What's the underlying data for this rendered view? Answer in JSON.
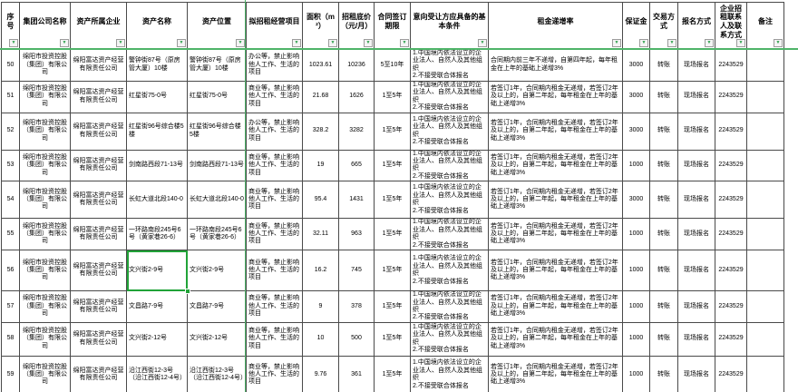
{
  "icons": {
    "filter_arrow": "▼"
  },
  "colors": {
    "freeze_line": "#4fb469",
    "selection_border": "#21a338",
    "grid_line": "#4a4a4a",
    "filter_arrow": "#2fa04d"
  },
  "selection": {
    "row_seq": "56",
    "column": "asset_name"
  },
  "table": {
    "columns": [
      {
        "key": "seq",
        "label": "序号"
      },
      {
        "key": "group",
        "label": "集团公司名称"
      },
      {
        "key": "owner",
        "label": "资产所属企业"
      },
      {
        "key": "asset_name",
        "label": "资产名称"
      },
      {
        "key": "location",
        "label": "资产位置"
      },
      {
        "key": "project",
        "label": "拟招租经营项目"
      },
      {
        "key": "area",
        "label": "面积（m²）"
      },
      {
        "key": "price",
        "label": "招租底价（元/月）"
      },
      {
        "key": "term",
        "label": "合同签订期限"
      },
      {
        "key": "conditions",
        "label": "意向受让方应具备的基本条件"
      },
      {
        "key": "increase",
        "label": "租金递增率"
      },
      {
        "key": "deposit",
        "label": "保证金"
      },
      {
        "key": "trade",
        "label": "交易方式"
      },
      {
        "key": "signup",
        "label": "报名方式"
      },
      {
        "key": "contact",
        "label": "企业招租联系人及联系方式"
      },
      {
        "key": "note",
        "label": "备注"
      }
    ],
    "rows": [
      {
        "seq": "50",
        "group": "绵阳市投资控股（集团）有限公司",
        "owner": "绵阳富达资产经营有限责任公司",
        "asset_name": "警钟街87号（原房管大厦）10楼",
        "location": "警钟街87号（原房管大厦）10楼",
        "project": "办公等，禁止影响他人工作、生活的项目",
        "area": "1023.61",
        "price": "10236",
        "term": "5至10年",
        "conditions": "1.中国境内依法设立的企业法人、自然人及其他组织\n2.不接受联合体报名",
        "increase": "合同期内前三年不递增，自第四年起，每年租金在上年的基础上递增3%",
        "deposit": "3000",
        "trade": "转账",
        "signup": "现场报名",
        "contact": "2243529",
        "note": ""
      },
      {
        "seq": "51",
        "group": "绵阳市投资控股（集团）有限公司",
        "owner": "绵阳富达资产经营有限责任公司",
        "asset_name": "红星街75-0号",
        "location": "红星街75-0号",
        "project": "商业等，禁止影响他人工作、生活的项目",
        "area": "21.68",
        "price": "1626",
        "term": "1至5年",
        "conditions": "1.中国境内依法设立的企业法人、自然人及其他组织\n2.不接受联合体报名",
        "increase": "若签订1年，合同期内租金无递增，若签订2年及以上的，自第二年起，每年租金在上年的基础上递增3%",
        "deposit": "3000",
        "trade": "转账",
        "signup": "现场报名",
        "contact": "2243529",
        "note": ""
      },
      {
        "seq": "52",
        "group": "绵阳市投资控股（集团）有限公司",
        "owner": "绵阳富达资产经营有限责任公司",
        "asset_name": "红星街96号综合楼5楼",
        "location": "红星街96号综合楼5楼",
        "project": "办公等，禁止影响他人工作、生活的项目",
        "area": "328.2",
        "price": "3282",
        "term": "1至5年",
        "conditions": "1.中国境内依法设立的企业法人、自然人及其他组织\n2.不接受联合体报名",
        "increase": "若签订1年，合同期内租金无递增，若签订2年及以上的，自第二年起，每年租金在上年的基础上递增3%",
        "deposit": "3000",
        "trade": "转账",
        "signup": "现场报名",
        "contact": "2243529",
        "note": ""
      },
      {
        "seq": "53",
        "group": "绵阳市投资控股（集团）有限公司",
        "owner": "绵阳富达资产经营有限责任公司",
        "asset_name": "剑南路西段71-13号",
        "location": "剑南路西段71-13号",
        "project": "商业等，禁止影响他人工作、生活的项目",
        "area": "19",
        "price": "665",
        "term": "1至5年",
        "conditions": "1.中国境内依法设立的企业法人、自然人及其他组织\n2.不接受联合体报名",
        "increase": "若签订1年，合同期内租金无递增，若签订2年及以上的，自第二年起，每年租金在上年的基础上递增3%",
        "deposit": "1000",
        "trade": "转账",
        "signup": "现场报名",
        "contact": "2243529",
        "note": ""
      },
      {
        "seq": "54",
        "group": "绵阳市投资控股（集团）有限公司",
        "owner": "绵阳富达资产经营有限责任公司",
        "asset_name": "长虹大道北段140-0",
        "location": "长虹大道北段140-0",
        "project": "商业等，禁止影响他人工作、生活的项目",
        "area": "95.4",
        "price": "1431",
        "term": "1至5年",
        "conditions": "1.中国境内依法设立的企业法人、自然人及其他组织\n2.不接受联合体报名",
        "increase": "若签订1年，合同期内租金无递增，若签订2年及以上的，自第二年起，每年租金在上年的基础上递增3%",
        "deposit": "3000",
        "trade": "转账",
        "signup": "现场报名",
        "contact": "2243529",
        "note": ""
      },
      {
        "seq": "55",
        "group": "绵阳市投资控股（集团）有限公司",
        "owner": "绵阳富达资产经营有限责任公司",
        "asset_name": "一环路南段245号6号（黄家巷26-6）",
        "location": "一环路南段245号6号（黄家巷26-6）",
        "project": "商业等，禁止影响他人工作、生活的项目",
        "area": "32.11",
        "price": "963",
        "term": "1至5年",
        "conditions": "1.中国境内依法设立的企业法人、自然人及其他组织\n2.不接受联合体报名",
        "increase": "若签订1年，合同期内租金无递增，若签订2年及以上的，自第二年起，每年租金在上年的基础上递增3%",
        "deposit": "1000",
        "trade": "转账",
        "signup": "现场报名",
        "contact": "2243529",
        "note": ""
      },
      {
        "seq": "56",
        "group": "绵阳市投资控股（集团）有限公司",
        "owner": "绵阳富达资产经营有限责任公司",
        "asset_name": "文兴街2-9号",
        "location": "文兴街2-9号",
        "project": "商业等，禁止影响他人工作、生活的项目",
        "area": "16.2",
        "price": "745",
        "term": "1至5年",
        "conditions": "1.中国境内依法设立的企业法人、自然人及其他组织\n2.不接受联合体报名",
        "increase": "若签订1年，合同期内租金无递增，若签订2年及以上的，自第二年起，每年租金在上年的基础上递增3%",
        "deposit": "1000",
        "trade": "转账",
        "signup": "现场报名",
        "contact": "2243529",
        "note": ""
      },
      {
        "seq": "57",
        "group": "绵阳市投资控股（集团）有限公司",
        "owner": "绵阳富达资产经营有限责任公司",
        "asset_name": "文昌路7-9号",
        "location": "文昌路7-9号",
        "project": "商业等，禁止影响他人工作、生活的项目",
        "area": "9",
        "price": "378",
        "term": "1至5年",
        "conditions": "1.中国境内依法设立的企业法人、自然人及其他组织\n2.不接受联合体报名",
        "increase": "若签订1年，合同期内租金无递增，若签订2年及以上的，自第二年起，每年租金在上年的基础上递增3%",
        "deposit": "1000",
        "trade": "转账",
        "signup": "现场报名",
        "contact": "2243529",
        "note": ""
      },
      {
        "seq": "58",
        "group": "绵阳市投资控股（集团）有限公司",
        "owner": "绵阳富达资产经营有限责任公司",
        "asset_name": "文兴街2-12号",
        "location": "文兴街2-12号",
        "project": "商业等，禁止影响他人工作、生活的项目",
        "area": "10",
        "price": "500",
        "term": "1至5年",
        "conditions": "1.中国境内依法设立的企业法人、自然人及其他组织\n2.不接受联合体报名",
        "increase": "若签订1年，合同期内租金无递增，若签订2年及以上的，自第二年起，每年租金在上年的基础上递增3%",
        "deposit": "1000",
        "trade": "转账",
        "signup": "现场报名",
        "contact": "2243529",
        "note": ""
      },
      {
        "seq": "59",
        "group": "绵阳市投资控股（集团）有限公司",
        "owner": "绵阳富达资产经营有限责任公司",
        "asset_name": "沿江西街12-3号（沿江西街12-4号）",
        "location": "沿江西街12-3号（沿江西街12-4号）",
        "project": "商业等，禁止影响他人工作、生活的项目",
        "area": "9.76",
        "price": "361",
        "term": "1至5年",
        "conditions": "1.中国境内依法设立的企业法人、自然人及其他组织\n2.不接受联合体报名",
        "increase": "若签订1年，合同期内租金无递增，若签订2年及以上的，自第二年起，每年租金在上年的基础上递增3%",
        "deposit": "1000",
        "trade": "转账",
        "signup": "现场报名",
        "contact": "2243529",
        "note": ""
      }
    ]
  }
}
